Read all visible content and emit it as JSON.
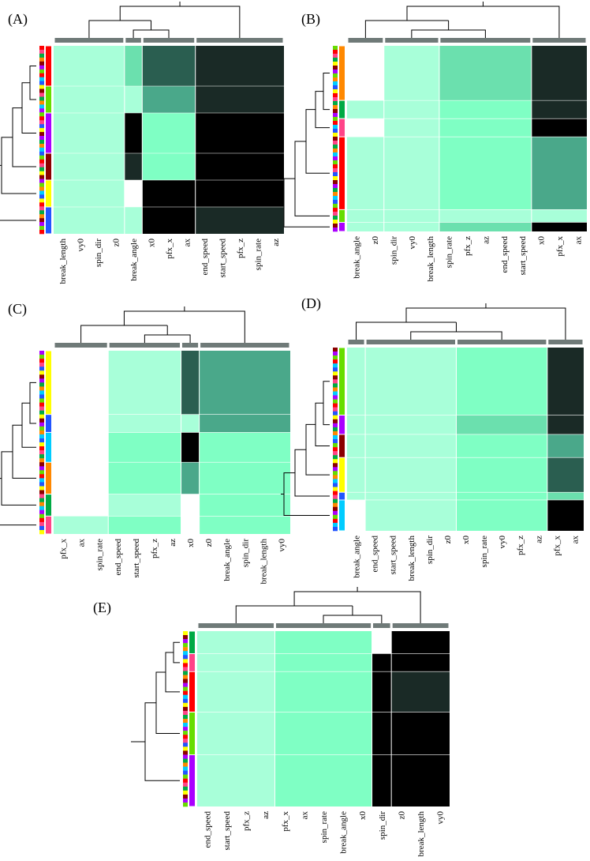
{
  "colors": {
    "value_scale": [
      "#ffffff",
      "#a8ffd9",
      "#7fffc4",
      "#6be0ae",
      "#4aa88a",
      "#2a5e50",
      "#1a2a26",
      "#000000"
    ],
    "column_group_bar": "#6f7a78",
    "row_category_palette": [
      "#ff0000",
      "#ff8800",
      "#ffff00",
      "#66dd00",
      "#00aa44",
      "#2255ff",
      "#aa00ff",
      "#ff4488",
      "#00ccff",
      "#8b0000"
    ]
  },
  "panels": [
    {
      "label": "(A)",
      "columns": [
        "break_length",
        "vy0",
        "spin_dir",
        "z0",
        "break_angle",
        "x0",
        "pfx_x",
        "ax",
        "end_speed",
        "start_speed",
        "pfx_z",
        "spin_rate",
        "az"
      ],
      "column_groups": [
        4,
        1,
        3,
        5
      ],
      "row_heights": [
        3,
        2,
        3,
        2,
        2,
        2
      ],
      "cell_levels": [
        [
          1,
          3,
          5,
          6
        ],
        [
          1,
          1,
          4,
          6
        ],
        [
          1,
          7,
          2,
          7
        ],
        [
          1,
          6,
          2,
          7
        ],
        [
          1,
          0,
          7,
          7
        ],
        [
          1,
          1,
          7,
          6
        ]
      ],
      "cluster_tags": [
        "a",
        "b",
        "c",
        "d",
        "e",
        "f"
      ]
    },
    {
      "label": "(B)",
      "columns": [
        "break_angle",
        "z0",
        "spin_dir",
        "vy0",
        "break_length",
        "spin_rate",
        "pfx_z",
        "az",
        "end_speed",
        "start_speed",
        "x0",
        "pfx_x",
        "ax"
      ],
      "column_groups": [
        2,
        3,
        5,
        3
      ],
      "row_heights": [
        3,
        1,
        1,
        4,
        0.7,
        0.5
      ],
      "cell_levels": [
        [
          0,
          1,
          3,
          6
        ],
        [
          1,
          1,
          2,
          6
        ],
        [
          0,
          1,
          2,
          7
        ],
        [
          1,
          1,
          2,
          4
        ],
        [
          1,
          1,
          1,
          1
        ],
        [
          1,
          1,
          3,
          7
        ]
      ],
      "cluster_tags": [
        "a",
        "b",
        "c",
        "d",
        "e",
        "f"
      ]
    },
    {
      "label": "(C)",
      "columns": [
        "pfx_x",
        "ax",
        "spin_rate",
        "end_speed",
        "start_speed",
        "pfx_z",
        "az",
        "x0",
        "z0",
        "break_angle",
        "spin_dir",
        "break_length",
        "vy0"
      ],
      "column_groups": [
        3,
        4,
        1,
        5
      ],
      "row_heights": [
        3.2,
        0.9,
        1.5,
        1.6,
        1.1,
        0.9
      ],
      "cell_levels": [
        [
          0,
          1,
          5,
          4
        ],
        [
          0,
          1,
          1,
          4
        ],
        [
          0,
          2,
          7,
          2
        ],
        [
          0,
          2,
          4,
          2
        ],
        [
          0,
          1,
          0,
          2
        ],
        [
          1,
          2,
          0,
          2
        ]
      ],
      "cluster_tags": [
        "a",
        "b",
        "c",
        "d",
        "e",
        "f"
      ]
    },
    {
      "label": "(D)",
      "columns": [
        "break_angle",
        "end_speed",
        "start_speed",
        "break_length",
        "spin_dir",
        "z0",
        "x0",
        "spin_rate",
        "vy0",
        "pfx_z",
        "az",
        "pfx_x",
        "ax"
      ],
      "column_groups": [
        1,
        5,
        5,
        2
      ],
      "row_heights": [
        3.5,
        1,
        1.2,
        1.8,
        0.4,
        1.6
      ],
      "cell_levels": [
        [
          1,
          1,
          2,
          6
        ],
        [
          1,
          1,
          3,
          6
        ],
        [
          1,
          1,
          2,
          4
        ],
        [
          1,
          1,
          2,
          5
        ],
        [
          1,
          1,
          2,
          3
        ],
        [
          0,
          1,
          2,
          7
        ]
      ],
      "cluster_tags": [
        "a",
        "b",
        "c",
        "d",
        "e",
        "f"
      ]
    },
    {
      "label": "(E)",
      "columns": [
        "end_speed",
        "start_speed",
        "pfx_z",
        "az",
        "pfx_x",
        "ax",
        "spin_rate",
        "break_angle",
        "x0",
        "spin_dir",
        "z0",
        "break_length",
        "vy0"
      ],
      "column_groups": [
        4,
        5,
        1,
        3
      ],
      "row_heights": [
        1,
        0.8,
        1.8,
        1.9,
        2.3
      ],
      "cell_levels": [
        [
          1,
          2,
          0,
          7
        ],
        [
          1,
          2,
          7,
          7
        ],
        [
          1,
          2,
          7,
          6
        ],
        [
          1,
          2,
          7,
          7
        ],
        [
          1,
          2,
          7,
          7
        ]
      ],
      "cluster_tags": [
        "a",
        "b",
        "c",
        "d",
        "e"
      ]
    }
  ],
  "chart_data": [
    {
      "type": "heatmap",
      "title": "(A)",
      "xlabels": [
        "break_length",
        "vy0",
        "spin_dir",
        "z0",
        "break_angle",
        "x0",
        "pfx_x",
        "ax",
        "end_speed",
        "start_speed",
        "pfx_z",
        "spin_rate",
        "az"
      ],
      "row_clusters": 6,
      "column_clusters": 4
    },
    {
      "type": "heatmap",
      "title": "(B)",
      "xlabels": [
        "break_angle",
        "z0",
        "spin_dir",
        "vy0",
        "break_length",
        "spin_rate",
        "pfx_z",
        "az",
        "end_speed",
        "start_speed",
        "x0",
        "pfx_x",
        "ax"
      ],
      "row_clusters": 6,
      "column_clusters": 4
    },
    {
      "type": "heatmap",
      "title": "(C)",
      "xlabels": [
        "pfx_x",
        "ax",
        "spin_rate",
        "end_speed",
        "start_speed",
        "pfx_z",
        "az",
        "x0",
        "z0",
        "break_angle",
        "spin_dir",
        "break_length",
        "vy0"
      ],
      "row_clusters": 6,
      "column_clusters": 4
    },
    {
      "type": "heatmap",
      "title": "(D)",
      "xlabels": [
        "break_angle",
        "end_speed",
        "start_speed",
        "break_length",
        "spin_dir",
        "z0",
        "x0",
        "spin_rate",
        "vy0",
        "pfx_z",
        "az",
        "pfx_x",
        "ax"
      ],
      "row_clusters": 6,
      "column_clusters": 4
    },
    {
      "type": "heatmap",
      "title": "(E)",
      "xlabels": [
        "end_speed",
        "start_speed",
        "pfx_z",
        "az",
        "pfx_x",
        "ax",
        "spin_rate",
        "break_angle",
        "x0",
        "spin_dir",
        "z0",
        "break_length",
        "vy0"
      ],
      "row_clusters": 5,
      "column_clusters": 4
    }
  ]
}
